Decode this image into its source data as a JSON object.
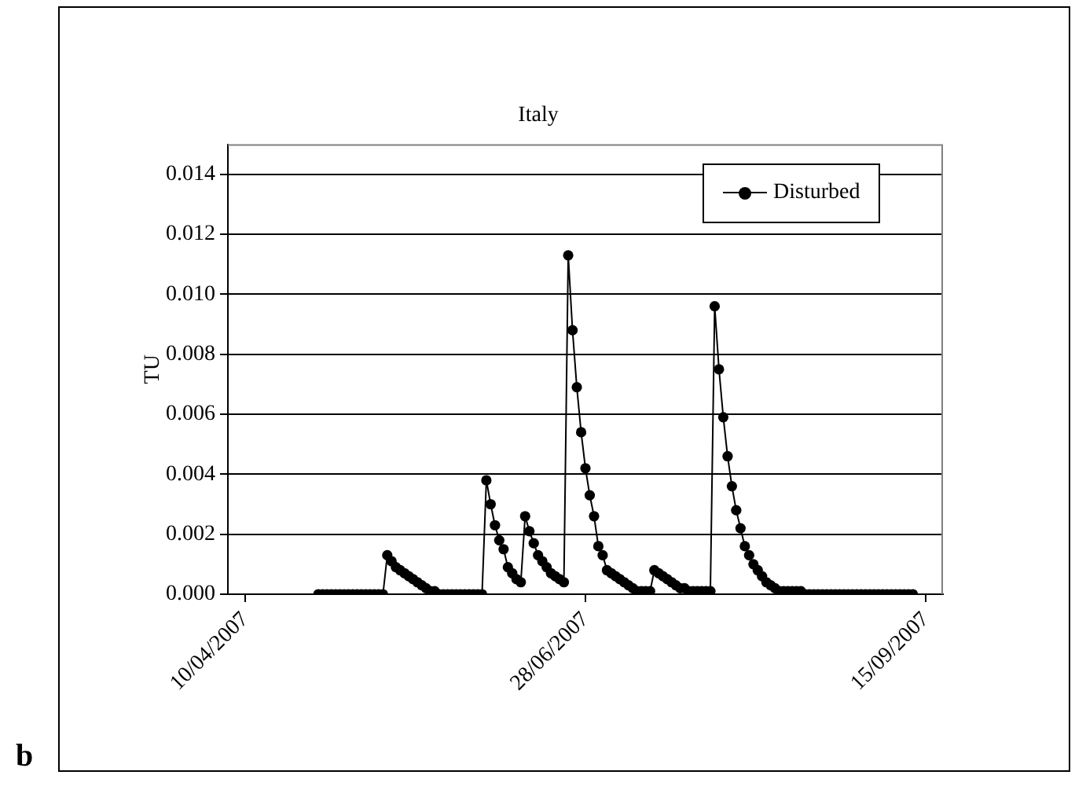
{
  "chart_data": {
    "type": "line",
    "title": "Italy",
    "ylabel": "TU",
    "annotations": [
      "b"
    ],
    "x": [
      "2007-04-27",
      "2007-04-28",
      "2007-04-29",
      "2007-04-30",
      "2007-05-01",
      "2007-05-02",
      "2007-05-03",
      "2007-05-04",
      "2007-05-05",
      "2007-05-06",
      "2007-05-07",
      "2007-05-08",
      "2007-05-09",
      "2007-05-10",
      "2007-05-11",
      "2007-05-12",
      "2007-05-13",
      "2007-05-14",
      "2007-05-15",
      "2007-05-16",
      "2007-05-17",
      "2007-05-18",
      "2007-05-19",
      "2007-05-20",
      "2007-05-21",
      "2007-05-22",
      "2007-05-23",
      "2007-05-24",
      "2007-05-25",
      "2007-05-26",
      "2007-05-27",
      "2007-05-28",
      "2007-05-29",
      "2007-05-30",
      "2007-05-31",
      "2007-06-01",
      "2007-06-02",
      "2007-06-03",
      "2007-06-04",
      "2007-06-05",
      "2007-06-06",
      "2007-06-07",
      "2007-06-08",
      "2007-06-09",
      "2007-06-10",
      "2007-06-11",
      "2007-06-12",
      "2007-06-13",
      "2007-06-14",
      "2007-06-15",
      "2007-06-16",
      "2007-06-17",
      "2007-06-18",
      "2007-06-19",
      "2007-06-20",
      "2007-06-21",
      "2007-06-22",
      "2007-06-23",
      "2007-06-24",
      "2007-06-25",
      "2007-06-26",
      "2007-06-27",
      "2007-06-28",
      "2007-06-29",
      "2007-06-30",
      "2007-07-01",
      "2007-07-02",
      "2007-07-03",
      "2007-07-04",
      "2007-07-05",
      "2007-07-06",
      "2007-07-07",
      "2007-07-08",
      "2007-07-09",
      "2007-07-10",
      "2007-07-11",
      "2007-07-12",
      "2007-07-13",
      "2007-07-14",
      "2007-07-15",
      "2007-07-16",
      "2007-07-17",
      "2007-07-18",
      "2007-07-19",
      "2007-07-20",
      "2007-07-21",
      "2007-07-22",
      "2007-07-23",
      "2007-07-24",
      "2007-07-25",
      "2007-07-26",
      "2007-07-27",
      "2007-07-28",
      "2007-07-29",
      "2007-07-30",
      "2007-07-31",
      "2007-08-01",
      "2007-08-02",
      "2007-08-03",
      "2007-08-04",
      "2007-08-05",
      "2007-08-06",
      "2007-08-07",
      "2007-08-08",
      "2007-08-09",
      "2007-08-10",
      "2007-08-11",
      "2007-08-12",
      "2007-08-13",
      "2007-08-14",
      "2007-08-15",
      "2007-08-16",
      "2007-08-17",
      "2007-08-18",
      "2007-08-19",
      "2007-08-20",
      "2007-08-21",
      "2007-08-22",
      "2007-08-23",
      "2007-08-24",
      "2007-08-25",
      "2007-08-26",
      "2007-08-27",
      "2007-08-28",
      "2007-08-29",
      "2007-08-30",
      "2007-08-31",
      "2007-09-01",
      "2007-09-02",
      "2007-09-03",
      "2007-09-04",
      "2007-09-05",
      "2007-09-06",
      "2007-09-07",
      "2007-09-08",
      "2007-09-09",
      "2007-09-10",
      "2007-09-11",
      "2007-09-12"
    ],
    "series": [
      {
        "name": "Disturbed",
        "color": "#000000",
        "values": [
          0,
          0,
          0,
          0,
          0,
          0,
          0,
          0,
          0,
          0,
          0,
          0,
          0,
          0,
          0,
          0,
          0.0013,
          0.0011,
          0.0009,
          0.0008,
          0.0007,
          0.0006,
          0.0005,
          0.0004,
          0.0003,
          0.0002,
          0.0001,
          0.0001,
          0,
          0,
          0,
          0,
          0,
          0,
          0,
          0,
          0,
          0,
          0,
          0.0038,
          0.003,
          0.0023,
          0.0018,
          0.0015,
          0.0009,
          0.0007,
          0.0005,
          0.0004,
          0.0026,
          0.0021,
          0.0017,
          0.0013,
          0.0011,
          0.0009,
          0.0007,
          0.0006,
          0.0005,
          0.0004,
          0.0113,
          0.0088,
          0.0069,
          0.0054,
          0.0042,
          0.0033,
          0.0026,
          0.0016,
          0.0013,
          0.0008,
          0.0007,
          0.0006,
          0.0005,
          0.0004,
          0.0003,
          0.0002,
          0.0001,
          0.0001,
          0.0001,
          0.0001,
          0.0008,
          0.0007,
          0.0006,
          0.0005,
          0.0004,
          0.0003,
          0.0002,
          0.0002,
          0.0001,
          0.0001,
          0.0001,
          0.0001,
          0.0001,
          0.0001,
          0.0096,
          0.0075,
          0.0059,
          0.0046,
          0.0036,
          0.0028,
          0.0022,
          0.0016,
          0.0013,
          0.001,
          0.0008,
          0.0006,
          0.0004,
          0.0003,
          0.0002,
          0.0001,
          0.0001,
          0.0001,
          0.0001,
          0.0001,
          0.0001,
          0,
          0,
          0,
          0,
          0,
          0,
          0,
          0,
          0,
          0,
          0,
          0,
          0,
          0,
          0,
          0,
          0,
          0,
          0,
          0,
          0,
          0,
          0,
          0,
          0,
          0
        ]
      }
    ],
    "xlim": [
      "2007-04-06",
      "2007-09-19"
    ],
    "xticks": [
      {
        "value": "2007-04-10",
        "label": "10/04/2007"
      },
      {
        "value": "2007-06-28",
        "label": "28/06/2007"
      },
      {
        "value": "2007-09-15",
        "label": "15/09/2007"
      }
    ],
    "ylim": [
      0,
      0.015
    ],
    "yticks": [
      {
        "value": 0,
        "label": "0.000"
      },
      {
        "value": 0.002,
        "label": "0.002"
      },
      {
        "value": 0.004,
        "label": "0.004"
      },
      {
        "value": 0.006,
        "label": "0.006"
      },
      {
        "value": 0.008,
        "label": "0.008"
      },
      {
        "value": 0.01,
        "label": "0.010"
      },
      {
        "value": 0.012,
        "label": "0.012"
      },
      {
        "value": 0.014,
        "label": "0.014"
      }
    ],
    "grid": "y",
    "legend": "top right",
    "marker": "circle",
    "line_style": "solid"
  }
}
